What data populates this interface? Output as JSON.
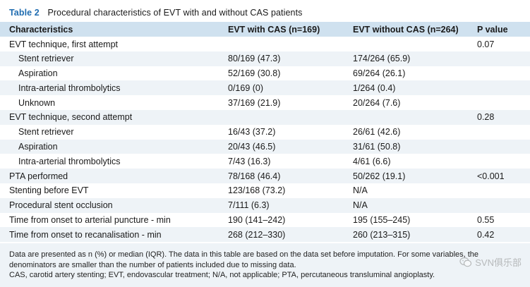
{
  "caption": {
    "label": "Table 2",
    "title": "Procedural characteristics of EVT with and without CAS patients"
  },
  "columns": [
    "Characteristics",
    "EVT with CAS (n=169)",
    "EVT without CAS (n=264)",
    "P value"
  ],
  "rows": [
    {
      "label": "EVT technique, first attempt",
      "with_cas": "",
      "without_cas": "",
      "p": "0.07"
    },
    {
      "label": "Stent retriever",
      "with_cas": "80/169 (47.3)",
      "without_cas": "174/264 (65.9)",
      "p": ""
    },
    {
      "label": "Aspiration",
      "with_cas": "52/169 (30.8)",
      "without_cas": "69/264 (26.1)",
      "p": ""
    },
    {
      "label": "Intra-arterial thrombolytics",
      "with_cas": "0/169 (0)",
      "without_cas": "1/264 (0.4)",
      "p": ""
    },
    {
      "label": "Unknown",
      "with_cas": "37/169 (21.9)",
      "without_cas": "20/264 (7.6)",
      "p": ""
    },
    {
      "label": "EVT technique, second attempt",
      "with_cas": "",
      "without_cas": "",
      "p": "0.28"
    },
    {
      "label": "Stent retriever",
      "with_cas": "16/43 (37.2)",
      "without_cas": "26/61 (42.6)",
      "p": ""
    },
    {
      "label": "Aspiration",
      "with_cas": "20/43 (46.5)",
      "without_cas": "31/61 (50.8)",
      "p": ""
    },
    {
      "label": "Intra-arterial thrombolytics",
      "with_cas": "7/43 (16.3)",
      "without_cas": "4/61 (6.6)",
      "p": ""
    },
    {
      "label": "PTA performed",
      "with_cas": "78/168 (46.4)",
      "without_cas": "50/262 (19.1)",
      "p": "<0.001"
    },
    {
      "label": "Stenting before EVT",
      "with_cas": "123/168 (73.2)",
      "without_cas": "N/A",
      "p": ""
    },
    {
      "label": "Procedural stent occlusion",
      "with_cas": "7/111 (6.3)",
      "without_cas": "N/A",
      "p": ""
    },
    {
      "label": "Time from onset to arterial puncture - min",
      "with_cas": "190 (141–242)",
      "without_cas": "195 (155–245)",
      "p": "0.55"
    },
    {
      "label": "Time from onset to recanalisation - min",
      "with_cas": "268 (212–330)",
      "without_cas": "260 (213–315)",
      "p": "0.42"
    }
  ],
  "footnote": {
    "line1": "Data are presented as n (%) or median (IQR). The data in this table are based on the data set before imputation. For some variables, the",
    "line2": "denominators are smaller than the number of patients included due to missing data.",
    "line3": "CAS, carotid artery stenting; EVT, endovascular treatment; N/A, not applicable; PTA, percutaneous transluminal angioplasty."
  },
  "watermark": {
    "text": "SVN俱乐部",
    "icon": "wechat-icon"
  },
  "colors": {
    "accent": "#1f6cb0",
    "header_bg": "#cfe1ef",
    "shaded_row_bg": "#eef3f7"
  }
}
